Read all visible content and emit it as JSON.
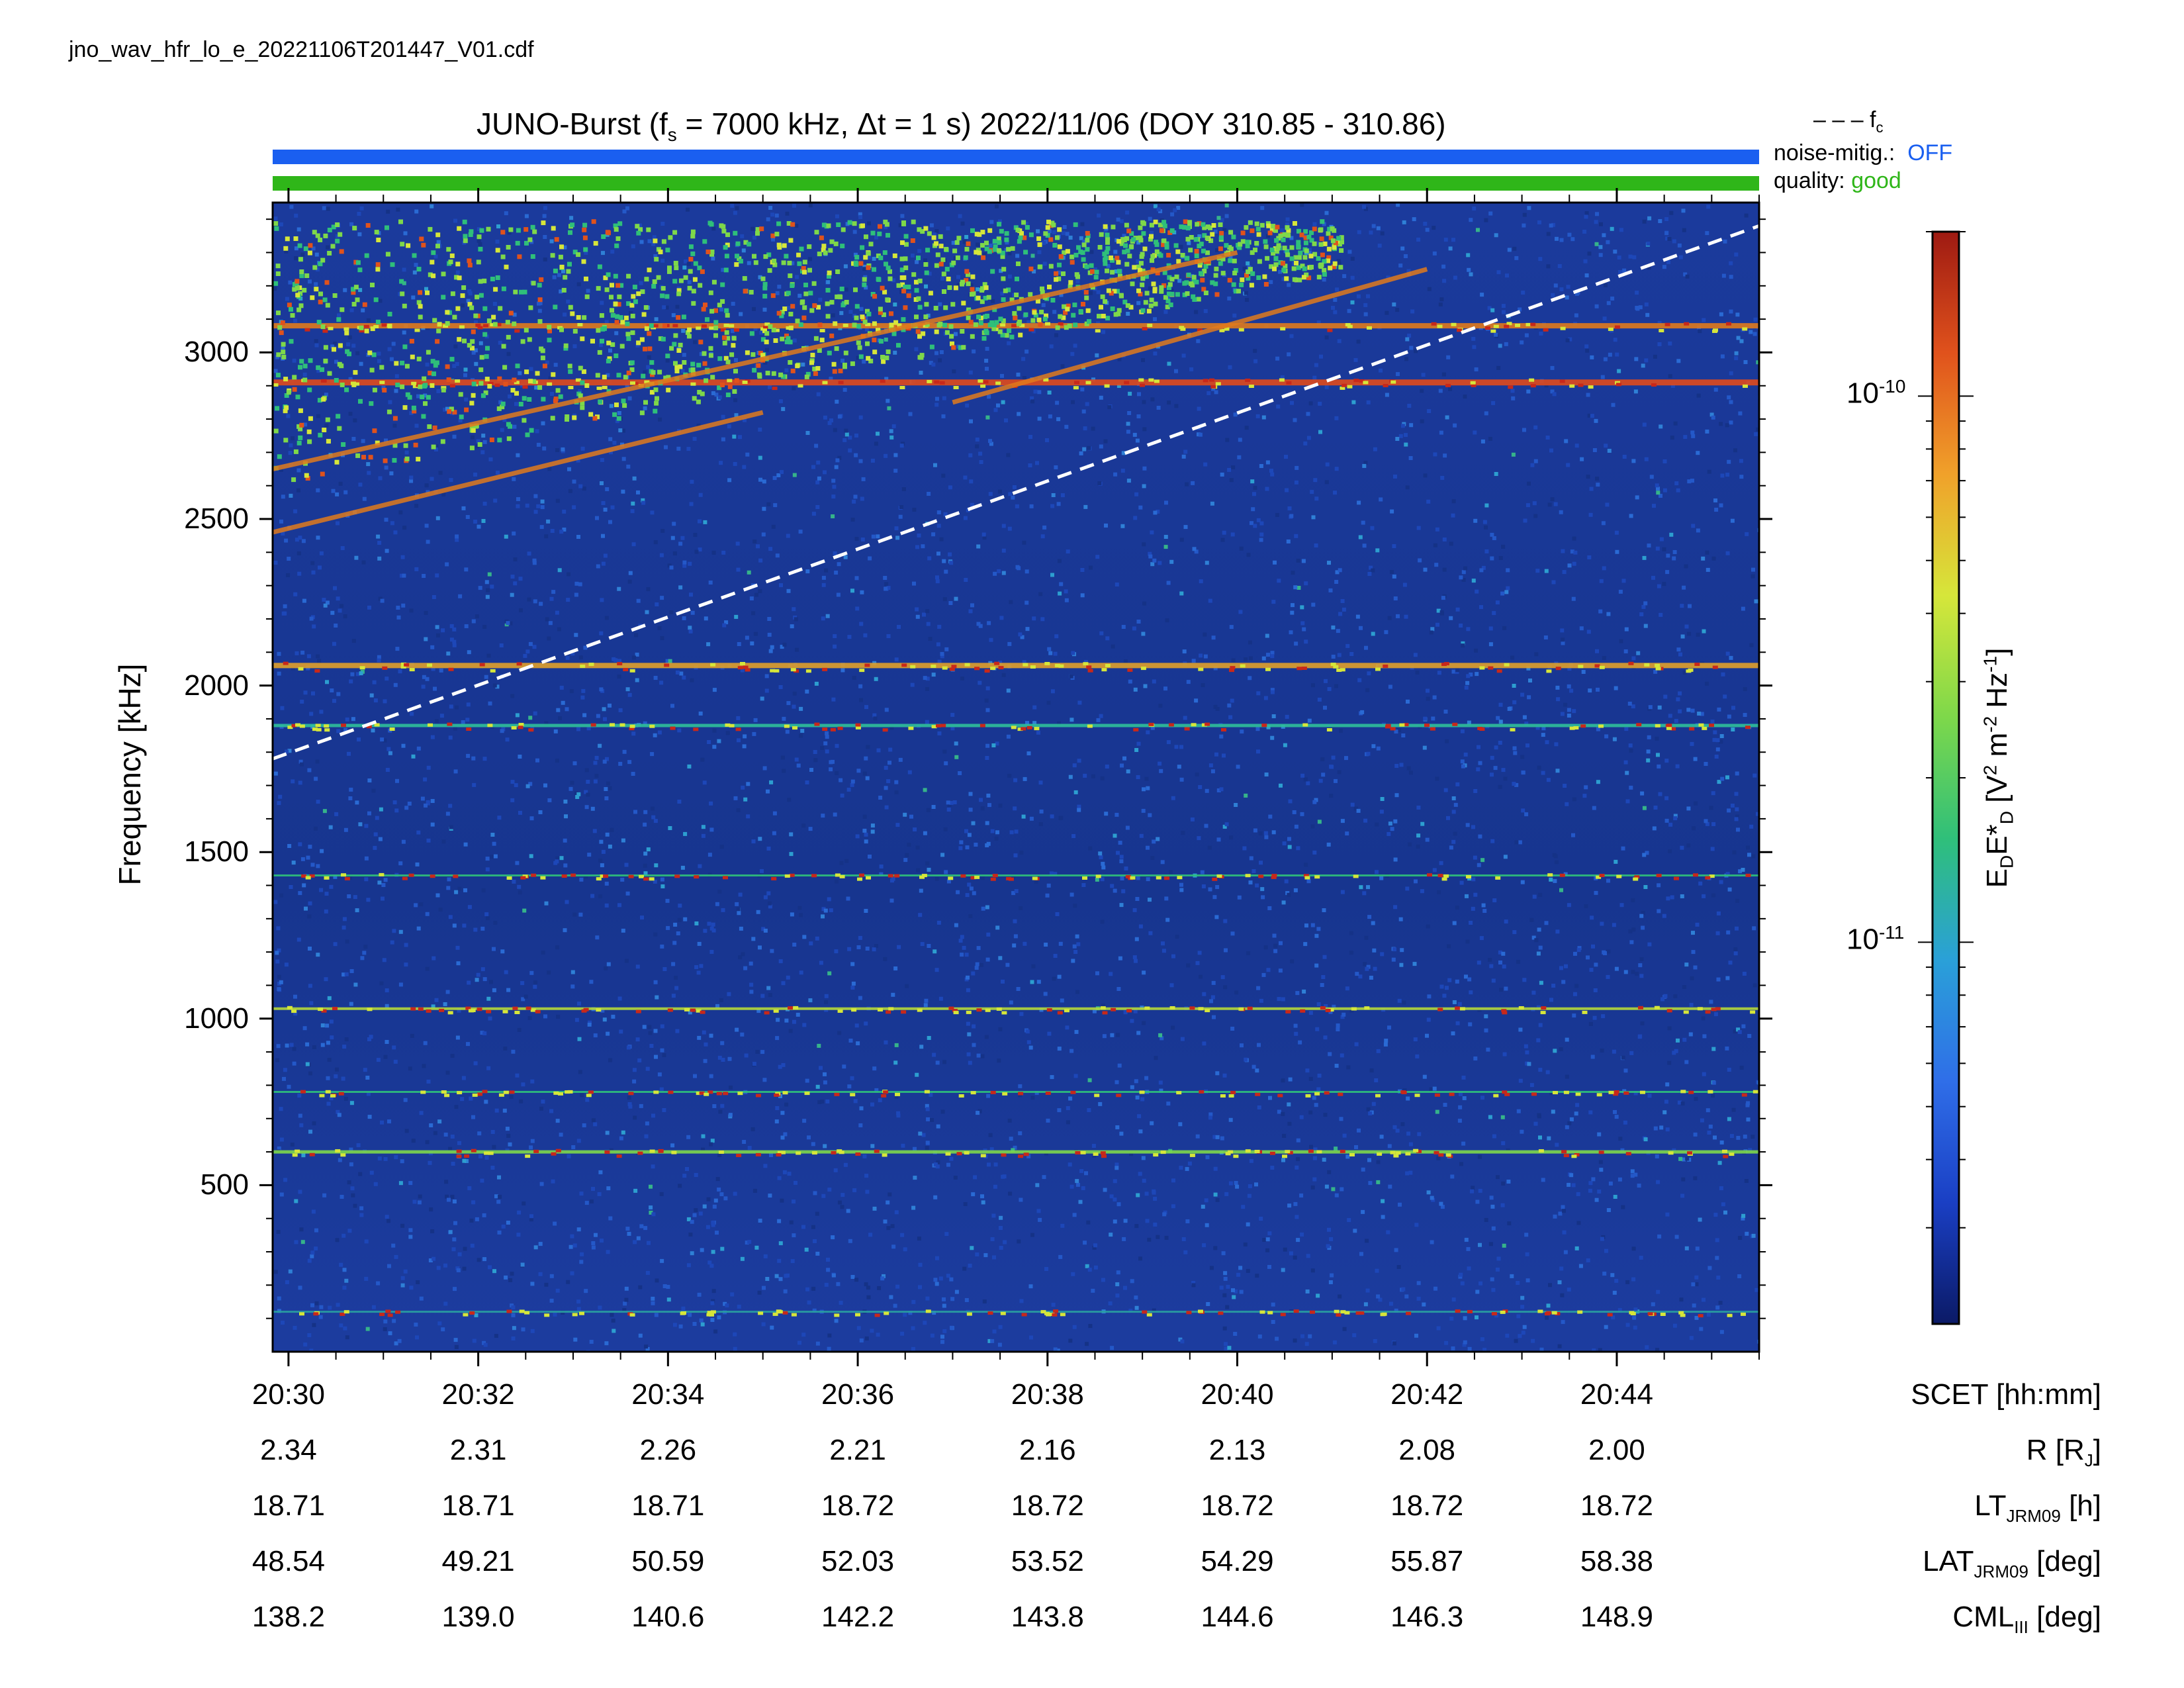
{
  "file_name": "jno_wav_hfr_lo_e_20221106T201447_V01.cdf",
  "title": {
    "prefix": "JUNO-Burst (f",
    "sub": "s",
    "suffix": " = 7000 kHz, Δt = 1 s)  2022/11/06 (DOY 310.85 - 310.86)"
  },
  "legend": {
    "fc_symbol": "– – –",
    "fc_label": "f",
    "fc_sub": "c"
  },
  "status": {
    "noise_label": "noise-mitig.:",
    "noise_value": "OFF",
    "noise_color": "#1a5ff0",
    "quality_label": "quality:",
    "quality_value": "good",
    "quality_color": "#2fb619"
  },
  "axes": {
    "ylabel": "Frequency [kHz]",
    "y_ticks": [
      "500",
      "1000",
      "1500",
      "2000",
      "2500",
      "3000"
    ],
    "x_ticks": [
      "20:30",
      "20:32",
      "20:34",
      "20:36",
      "20:38",
      "20:40",
      "20:42",
      "20:44"
    ]
  },
  "ephemeris": {
    "rows": [
      {
        "label": "SCET [hh:mm]",
        "values": []
      },
      {
        "label_main": "R [R",
        "label_sub": "J",
        "label_end": "]",
        "values": [
          "2.34",
          "2.31",
          "2.26",
          "2.21",
          "2.16",
          "2.13",
          "2.08",
          "2.00"
        ]
      },
      {
        "label_main": "LT",
        "label_sub": "JRM09",
        "label_end": " [h]",
        "values": [
          "18.71",
          "18.71",
          "18.71",
          "18.72",
          "18.72",
          "18.72",
          "18.72",
          "18.72"
        ]
      },
      {
        "label_main": "LAT",
        "label_sub": "JRM09",
        "label_end": " [deg]",
        "values": [
          "48.54",
          "49.21",
          "50.59",
          "52.03",
          "53.52",
          "54.29",
          "55.87",
          "58.38"
        ]
      },
      {
        "label_main": "CML",
        "label_sub": "III",
        "label_end": " [deg]",
        "values": [
          "138.2",
          "139.0",
          "140.6",
          "142.2",
          "143.8",
          "144.6",
          "146.3",
          "148.9"
        ]
      }
    ]
  },
  "colorbar": {
    "label_main": "E",
    "label_sub1": "D",
    "label_mid": "E*",
    "label_sub2": "D",
    "label_rest": " [V",
    "label_sup1": "2",
    "label_rest2": " m",
    "label_sup2": "-2",
    "label_rest3": " Hz",
    "label_sup3": "-1",
    "label_end": "]",
    "tick_base": "10",
    "tick_exps": [
      "-10",
      "-11"
    ],
    "colors": [
      "#0b1a66",
      "#1a3fc4",
      "#2f6ee8",
      "#2aa0d8",
      "#2fbf7a",
      "#7ed84a",
      "#d6e63a",
      "#f0a12a",
      "#e0521c",
      "#9e1a12"
    ]
  },
  "chart_data": {
    "type": "heatmap",
    "title": "JUNO-Burst (fs = 7000 kHz, Δt = 1 s)  2022/11/06 (DOY 310.85 - 310.86)",
    "xlabel": "SCET [hh:mm]",
    "ylabel": "Frequency [kHz]",
    "x_range": [
      "20:29:50",
      "20:45:30"
    ],
    "ylim": [
      0,
      3450
    ],
    "y_ticks": [
      500,
      1000,
      1500,
      2000,
      2500,
      3000
    ],
    "x_ticks": [
      "20:30",
      "20:32",
      "20:34",
      "20:36",
      "20:38",
      "20:40",
      "20:42",
      "20:44"
    ],
    "colorbar": {
      "scale": "log",
      "range": [
        2e-12,
        2e-10
      ],
      "ticks": [
        "10^-11",
        "10^-10"
      ]
    },
    "fc_line": {
      "style": "dashed",
      "color": "#ffffff",
      "points": [
        {
          "t": "20:29:50",
          "f_kHz": 1780
        },
        {
          "t": "20:45:30",
          "f_kHz": 3380
        }
      ]
    },
    "emission_bands_kHz": [
      120,
      600,
      780,
      1030,
      1430,
      1880,
      2060,
      2910,
      3080
    ],
    "drifting_features": [
      {
        "from": {
          "t": "20:29:50",
          "f_kHz": 2460
        },
        "to": {
          "t": "20:35:00",
          "f_kHz": 2820
        }
      },
      {
        "from": {
          "t": "20:29:50",
          "f_kHz": 2650
        },
        "to": {
          "t": "20:40:00",
          "f_kHz": 3300
        }
      },
      {
        "from": {
          "t": "20:37:00",
          "f_kHz": 2850
        },
        "to": {
          "t": "20:42:00",
          "f_kHz": 3250
        }
      }
    ]
  }
}
